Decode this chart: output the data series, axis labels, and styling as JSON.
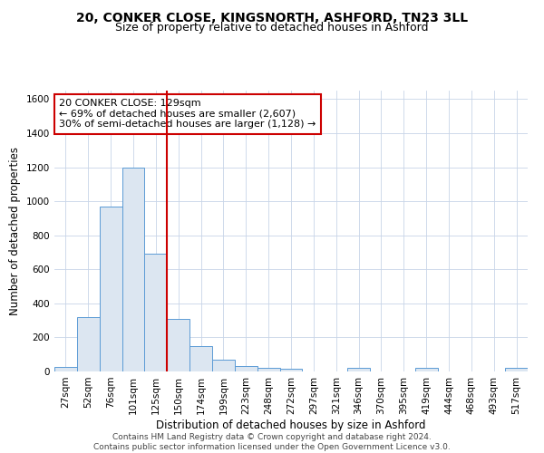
{
  "title_line1": "20, CONKER CLOSE, KINGSNORTH, ASHFORD, TN23 3LL",
  "title_line2": "Size of property relative to detached houses in Ashford",
  "xlabel": "Distribution of detached houses by size in Ashford",
  "ylabel": "Number of detached properties",
  "footer_line1": "Contains HM Land Registry data © Crown copyright and database right 2024.",
  "footer_line2": "Contains public sector information licensed under the Open Government Licence v3.0.",
  "annotation_line1": "20 CONKER CLOSE: 129sqm",
  "annotation_line2": "← 69% of detached houses are smaller (2,607)",
  "annotation_line3": "30% of semi-detached houses are larger (1,128) →",
  "bar_labels": [
    "27sqm",
    "52sqm",
    "76sqm",
    "101sqm",
    "125sqm",
    "150sqm",
    "174sqm",
    "199sqm",
    "223sqm",
    "248sqm",
    "272sqm",
    "297sqm",
    "321sqm",
    "346sqm",
    "370sqm",
    "395sqm",
    "419sqm",
    "444sqm",
    "468sqm",
    "493sqm",
    "517sqm"
  ],
  "bar_values": [
    27,
    320,
    970,
    1200,
    690,
    310,
    150,
    70,
    30,
    20,
    15,
    0,
    0,
    20,
    0,
    0,
    20,
    0,
    0,
    0,
    20
  ],
  "bar_edge_color": "#5b9bd5",
  "bar_face_color": "#dce6f1",
  "vline_color": "#cc0000",
  "vline_index": 4,
  "ylim": [
    0,
    1650
  ],
  "yticks": [
    0,
    200,
    400,
    600,
    800,
    1000,
    1200,
    1400,
    1600
  ],
  "bg_color": "#ffffff",
  "grid_color": "#c8d4e8",
  "title1_fontsize": 10,
  "title2_fontsize": 9,
  "axis_label_fontsize": 8.5,
  "tick_fontsize": 7.5,
  "annotation_fontsize": 8,
  "footer_fontsize": 6.5
}
